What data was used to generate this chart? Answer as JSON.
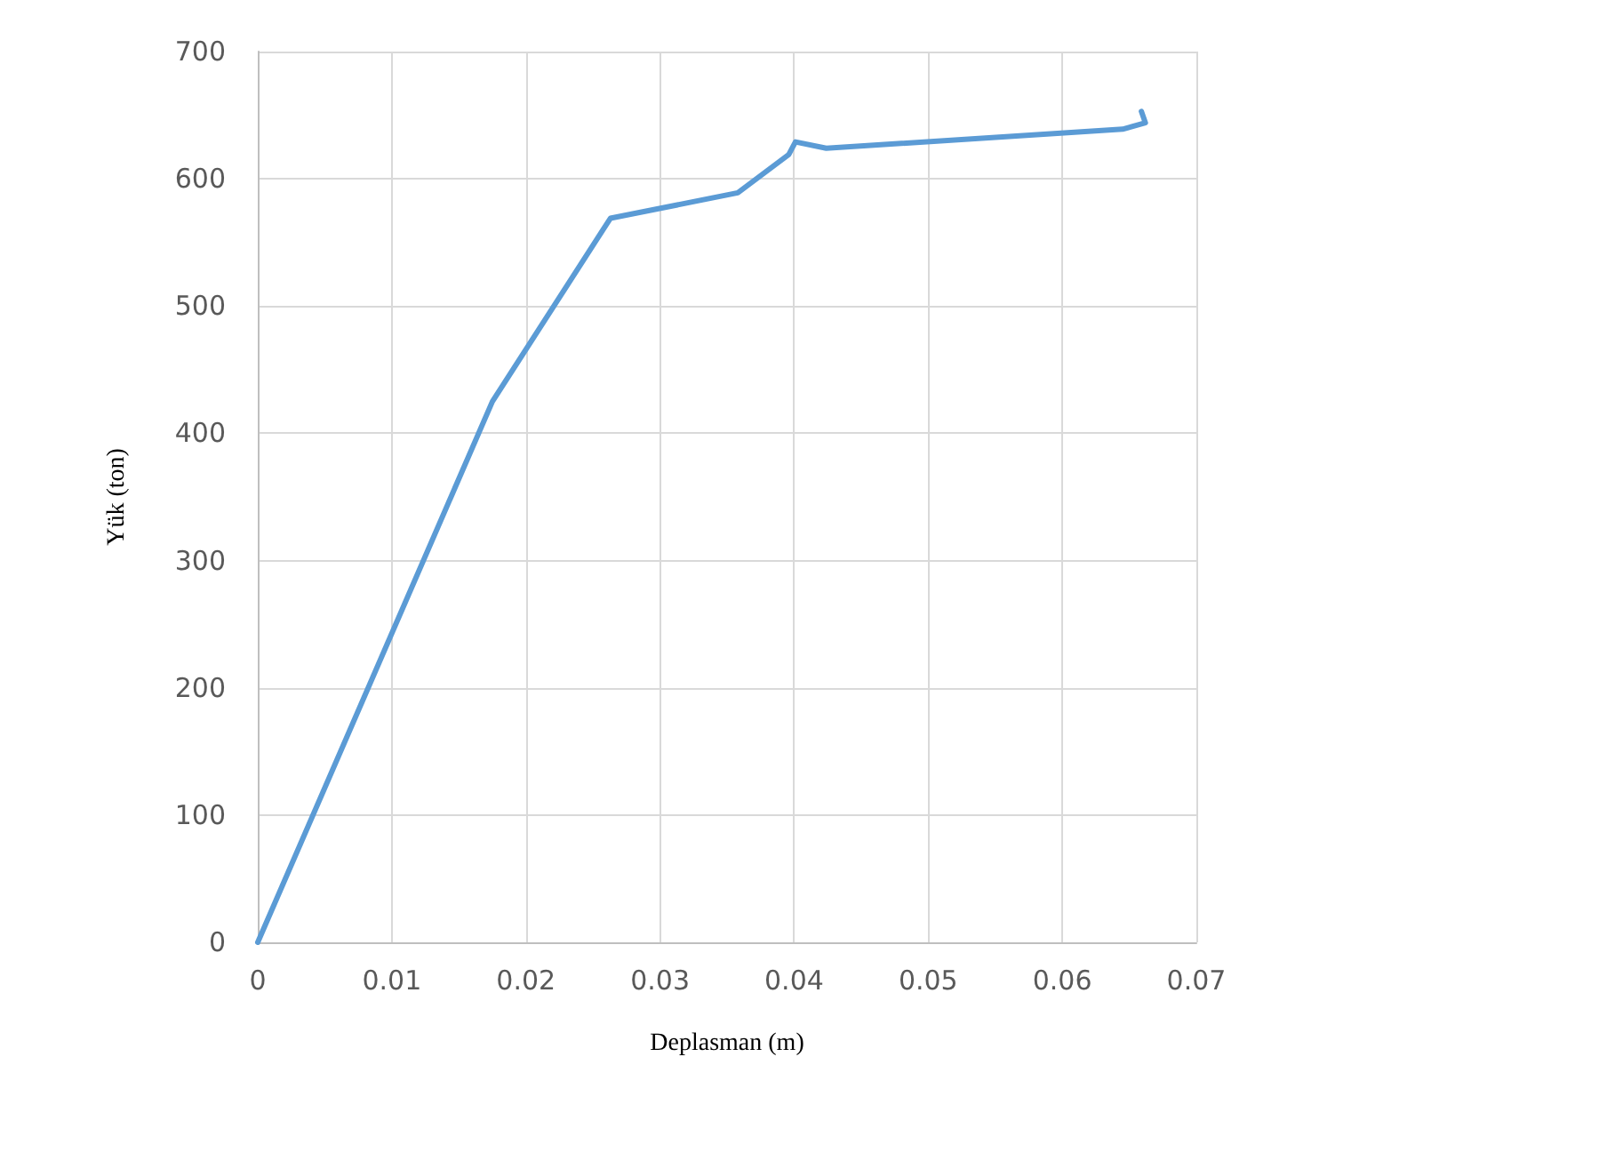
{
  "chart_data": {
    "type": "line",
    "xlabel": "Deplasman (m)",
    "ylabel": "Yük (ton)",
    "series": [
      {
        "color": "#5b9bd5",
        "x": [
          0,
          0.0175,
          0.0263,
          0.0358,
          0.0396,
          0.0401,
          0.0424,
          0.0645,
          0.0662,
          0.0659
        ],
        "values": [
          0,
          425,
          569,
          589,
          619,
          629,
          624,
          639,
          644,
          653
        ]
      }
    ],
    "xlim": [
      0,
      0.07
    ],
    "xticks": [
      0,
      0.01,
      0.02,
      0.03,
      0.04,
      0.05,
      0.06,
      0.07
    ],
    "ylim": [
      0,
      700
    ],
    "yticks": [
      0,
      100,
      200,
      300,
      400,
      500,
      600,
      700
    ],
    "grid": true,
    "marker": "none",
    "line_style": "solid"
  }
}
